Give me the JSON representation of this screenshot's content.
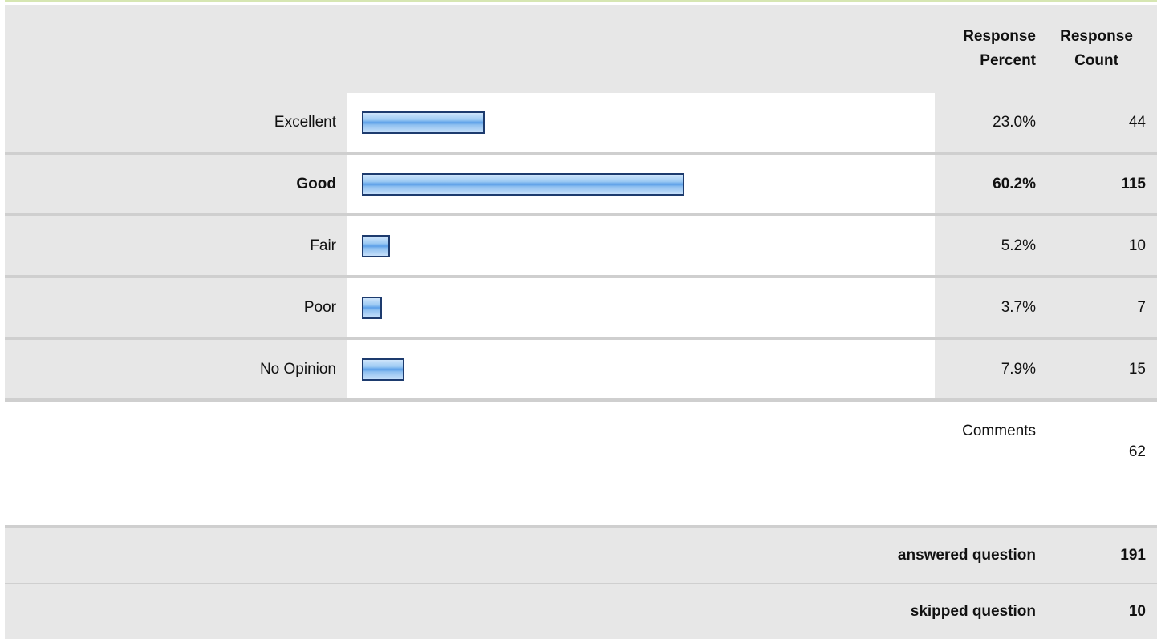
{
  "header": {
    "percent_line1": "Response",
    "percent_line2": "Percent",
    "count_line1": "Response",
    "count_line2": "Count"
  },
  "chart_data": {
    "type": "bar",
    "categories": [
      "Excellent",
      "Good",
      "Fair",
      "Poor",
      "No Opinion"
    ],
    "values": [
      23.0,
      60.2,
      5.2,
      3.7,
      7.9
    ],
    "percent_labels": [
      "23.0%",
      "60.2%",
      "5.2%",
      "3.7%",
      "7.9%"
    ],
    "counts": [
      "44",
      "115",
      "10",
      "7",
      "15"
    ],
    "highlighted_category": "Good",
    "bar_color": "#5b9fe8",
    "bar_border_color": "#1d3b6e"
  },
  "comments": {
    "label": "Comments",
    "count": "62"
  },
  "summary": {
    "answered_label": "answered question",
    "answered_count": "191",
    "skipped_label": "skipped question",
    "skipped_count": "10"
  }
}
